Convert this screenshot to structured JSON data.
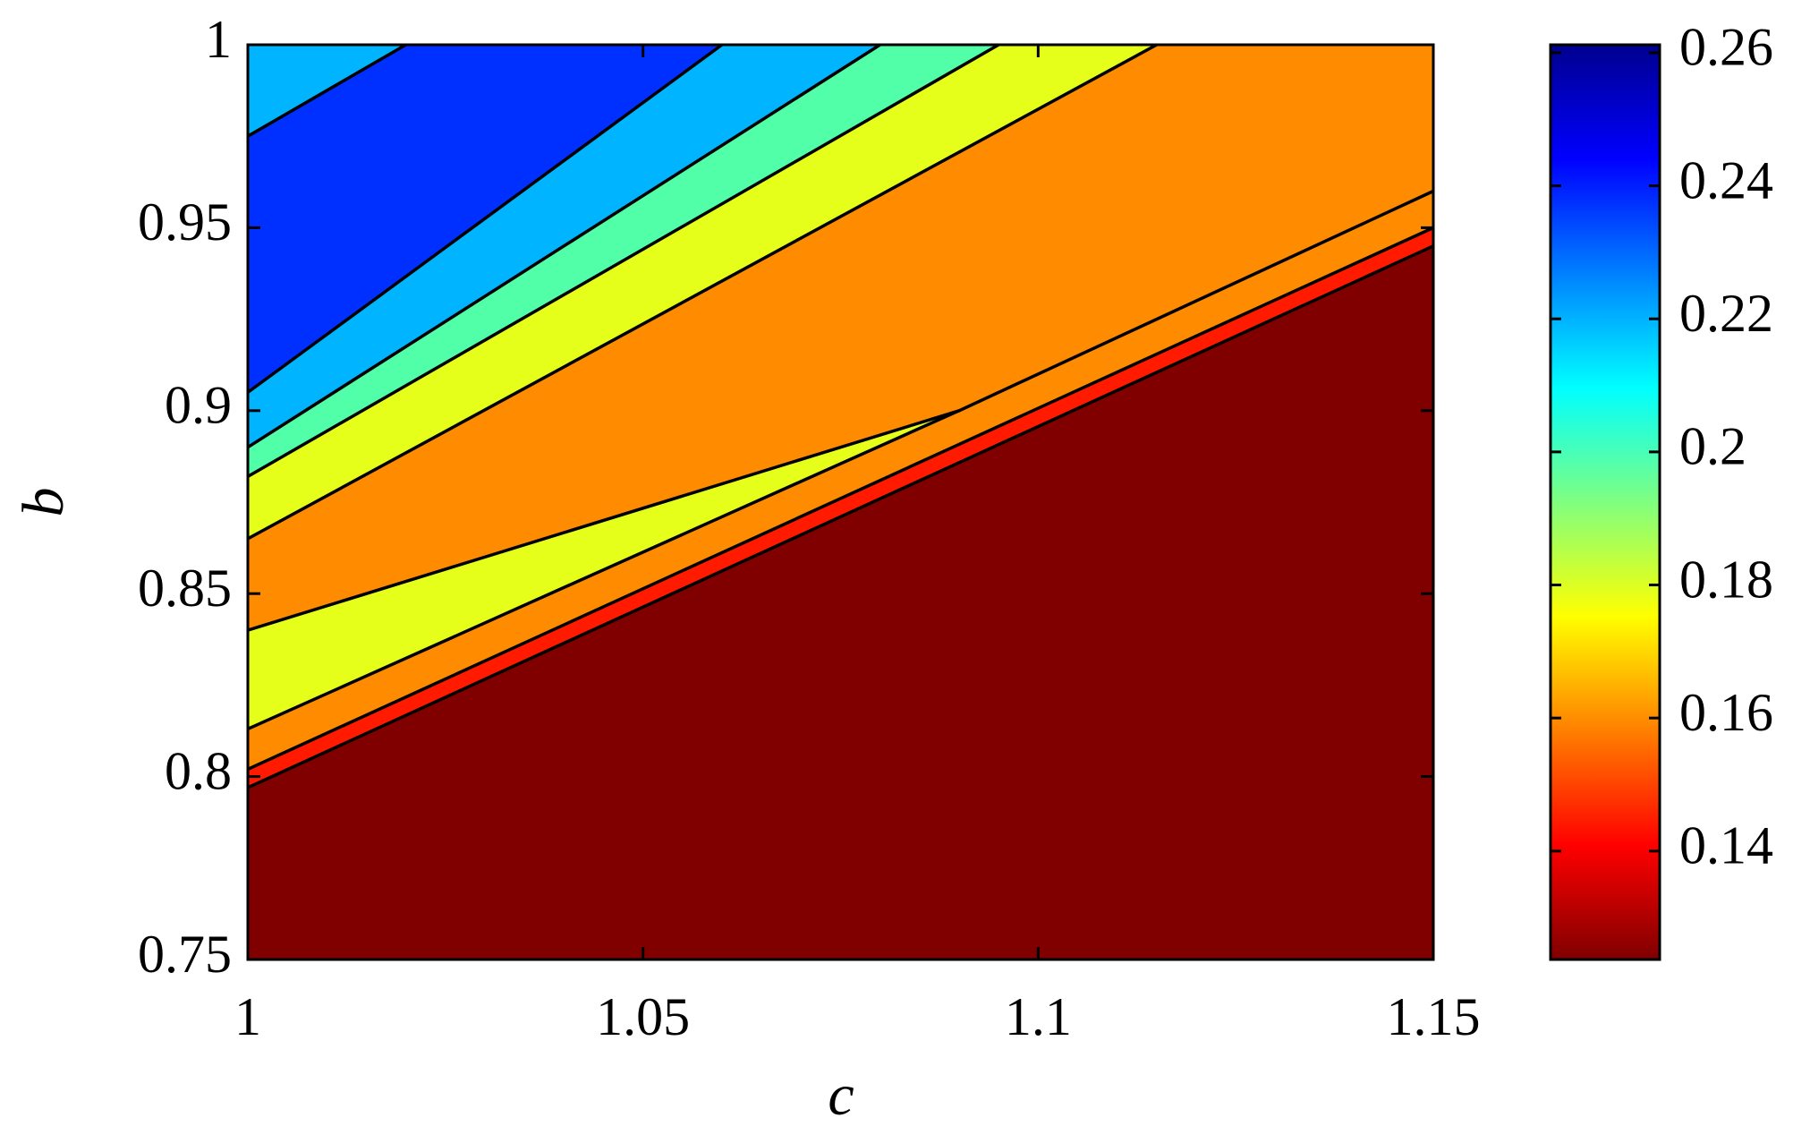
{
  "chart_data": {
    "type": "contour",
    "xlabel": "c",
    "ylabel": "b",
    "xlim": [
      1,
      1.15
    ],
    "ylim": [
      0.75,
      1
    ],
    "xticks": [
      1,
      1.05,
      1.1,
      1.15
    ],
    "yticks": [
      0.75,
      0.8,
      0.85,
      0.9,
      0.95,
      1
    ],
    "base_color": "#800000",
    "bands": [
      {
        "color": "#ff1a00",
        "x": [
          1,
          1.15
        ],
        "y": [
          0.797,
          0.945
        ]
      },
      {
        "color": "#ff8c00",
        "x": [
          1,
          1.15
        ],
        "y": [
          0.802,
          0.95
        ]
      },
      {
        "color": "#e6ff1a",
        "x": [
          1,
          1.09
        ],
        "y": [
          0.813,
          0.9
        ]
      },
      {
        "color": "#ff8c00",
        "x": [
          1,
          1.09,
          1.15
        ],
        "y": [
          0.84,
          0.9,
          0.96
        ]
      },
      {
        "color": "#e6ff1a",
        "x": [
          1,
          1.115
        ],
        "y": [
          0.865,
          1
        ]
      },
      {
        "color": "#50ffa8",
        "x": [
          1,
          1.095
        ],
        "y": [
          0.882,
          1
        ]
      },
      {
        "color": "#00b4ff",
        "x": [
          1,
          1.08
        ],
        "y": [
          0.89,
          1
        ]
      },
      {
        "color": "#0030ff",
        "x": [
          1,
          1.06
        ],
        "y": [
          0.905,
          1
        ]
      },
      {
        "color": "#00b4ff",
        "x": [
          1,
          1.02
        ],
        "y": [
          0.975,
          1
        ]
      }
    ],
    "colorbar": {
      "clim": [
        0.1237,
        0.2612
      ],
      "ticks": [
        0.14,
        0.16,
        0.18,
        0.2,
        0.22,
        0.24,
        0.26
      ]
    }
  }
}
